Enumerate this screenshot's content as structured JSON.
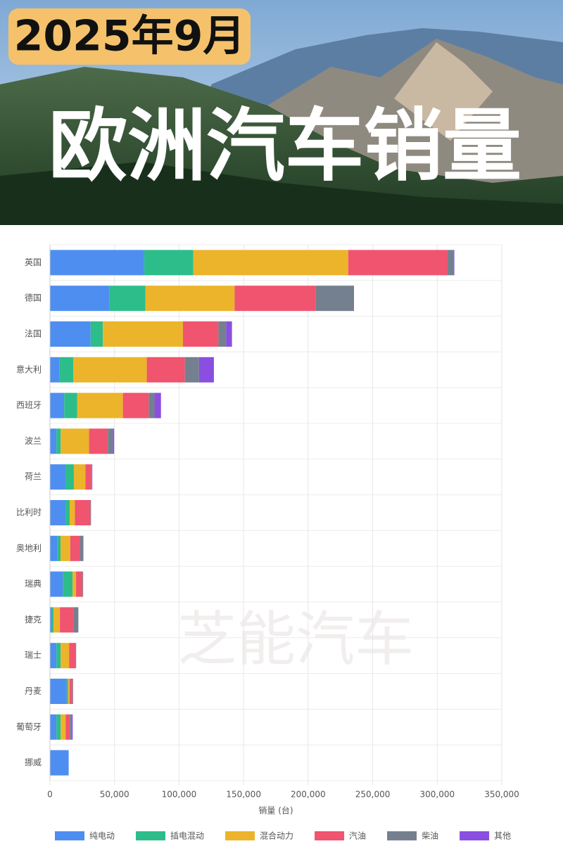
{
  "chart_data": {
    "type": "stacked-barh",
    "subtitle": "2025年9月",
    "title": "欧洲汽车销量",
    "watermark": "芝能汽车",
    "categories": [
      "英国",
      "德国",
      "法国",
      "意大利",
      "西班牙",
      "波兰",
      "荷兰",
      "比利时",
      "奥地利",
      "瑞典",
      "捷克",
      "瑞士",
      "丹麦",
      "葡萄牙",
      "挪威"
    ],
    "series": [
      {
        "name": "纯电动",
        "color": "#4e8ef0",
        "values": [
          73000,
          46000,
          31500,
          7500,
          11000,
          5000,
          12000,
          12000,
          5500,
          10000,
          1600,
          5000,
          13000,
          5000,
          14500
        ]
      },
      {
        "name": "插电混动",
        "color": "#2dbd8a",
        "values": [
          38000,
          28000,
          9500,
          10500,
          10000,
          3300,
          6500,
          3300,
          2700,
          7500,
          1100,
          3300,
          1100,
          3300,
          0
        ]
      },
      {
        "name": "混合动力",
        "color": "#ecb42a",
        "values": [
          120000,
          69000,
          62000,
          57000,
          35500,
          22000,
          9000,
          4000,
          7500,
          2700,
          5000,
          6500,
          1100,
          3800,
          0
        ]
      },
      {
        "name": "汽油",
        "color": "#f0546e",
        "values": [
          77000,
          63000,
          27500,
          29500,
          20000,
          14500,
          4500,
          12000,
          7500,
          5000,
          10500,
          5000,
          2200,
          3300,
          0
        ]
      },
      {
        "name": "柴油",
        "color": "#74808f",
        "values": [
          5000,
          29000,
          6000,
          11000,
          4500,
          3800,
          300,
          500,
          2700,
          500,
          3800,
          500,
          500,
          1100,
          0
        ]
      },
      {
        "name": "其他",
        "color": "#8a4fe0",
        "values": [
          300,
          500,
          4500,
          11500,
          5000,
          1100,
          500,
          0,
          0,
          0,
          0,
          0,
          0,
          1100,
          0
        ]
      }
    ],
    "x_label": "销量 (台)",
    "xlim": [
      0,
      350000
    ],
    "xticks": [
      0,
      {
        "value": 50000,
        "label": "50,000"
      },
      {
        "value": 100000,
        "label": "100,000"
      },
      {
        "value": 150000,
        "label": "150,000"
      },
      {
        "value": 200000,
        "label": "200,000"
      },
      {
        "value": 250000,
        "label": "250,000"
      },
      {
        "value": 300000,
        "label": "300,000"
      },
      {
        "value": 350000,
        "label": "350,000"
      }
    ],
    "grid": true,
    "legend": "bottom"
  }
}
